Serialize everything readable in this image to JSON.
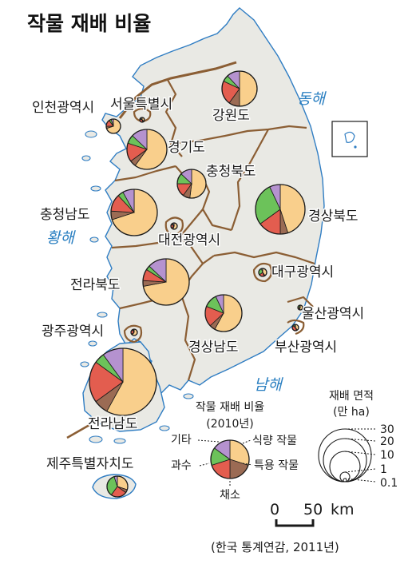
{
  "title": "작물 재배 비율",
  "seas": {
    "east": "동해",
    "west": "황해",
    "south": "남해"
  },
  "colors": {
    "land": "#e9e9e4",
    "coast": "#2f7dc3",
    "boundary": "#8b5e34",
    "food": "#f9cf8c",
    "special": "#9b6b54",
    "vegetable": "#e35d4f",
    "fruit": "#6cc25a",
    "other": "#b592cf"
  },
  "regions": [
    {
      "name": "서울특별시",
      "food": 35,
      "special": 10,
      "vegetable": 35,
      "fruit": 10,
      "other": 10
    },
    {
      "name": "인천광역시",
      "food": 70,
      "special": 5,
      "vegetable": 15,
      "fruit": 5,
      "other": 5
    },
    {
      "name": "강원도",
      "food": 50,
      "special": 10,
      "vegetable": 22,
      "fruit": 6,
      "other": 12
    },
    {
      "name": "경기도",
      "food": 60,
      "special": 5,
      "vegetable": 15,
      "fruit": 7,
      "other": 13
    },
    {
      "name": "충청북도",
      "food": 52,
      "special": 8,
      "vegetable": 15,
      "fruit": 12,
      "other": 13
    },
    {
      "name": "충청남도",
      "food": 70,
      "special": 6,
      "vegetable": 12,
      "fruit": 4,
      "other": 8
    },
    {
      "name": "대전광역시",
      "food": 55,
      "special": 10,
      "vegetable": 20,
      "fruit": 7,
      "other": 8
    },
    {
      "name": "경상북도",
      "food": 45,
      "special": 5,
      "vegetable": 15,
      "fruit": 28,
      "other": 7
    },
    {
      "name": "대구광역시",
      "food": 40,
      "special": 5,
      "vegetable": 20,
      "fruit": 30,
      "other": 5
    },
    {
      "name": "전라북도",
      "food": 72,
      "special": 4,
      "vegetable": 8,
      "fruit": 3,
      "other": 13
    },
    {
      "name": "울산광역시",
      "food": 55,
      "special": 5,
      "vegetable": 15,
      "fruit": 20,
      "other": 5
    },
    {
      "name": "광주광역시",
      "food": 60,
      "special": 5,
      "vegetable": 25,
      "fruit": 5,
      "other": 5
    },
    {
      "name": "경상남도",
      "food": 58,
      "special": 5,
      "vegetable": 18,
      "fruit": 12,
      "other": 7
    },
    {
      "name": "부산광역시",
      "food": 40,
      "special": 5,
      "vegetable": 40,
      "fruit": 10,
      "other": 5
    },
    {
      "name": "전라남도",
      "food": 58,
      "special": 7,
      "vegetable": 20,
      "fruit": 5,
      "other": 10
    },
    {
      "name": "제주특별자치도",
      "food": 30,
      "special": 5,
      "vegetable": 25,
      "fruit": 35,
      "other": 5
    }
  ],
  "legend": {
    "pie_title": "작물 재배 비율",
    "pie_year": "(2010년)",
    "other": "기타",
    "food": "식량 작물",
    "fruit": "과수",
    "special": "특용 작물",
    "vegetable": "채소",
    "size_title": "재배 면적",
    "size_unit": "(만 ha)",
    "size_values": [
      "30",
      "20",
      "10",
      "1",
      "0.1"
    ]
  },
  "scale": {
    "zero": "0",
    "value": "50",
    "unit": "km"
  },
  "source": "(한국 통계연감, 2011년)"
}
